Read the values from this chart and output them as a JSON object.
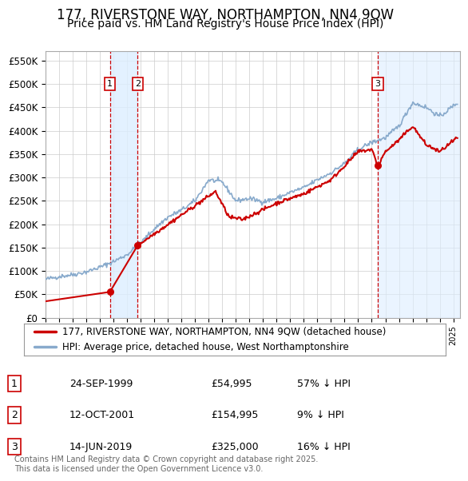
{
  "title": "177, RIVERSTONE WAY, NORTHAMPTON, NN4 9QW",
  "subtitle": "Price paid vs. HM Land Registry's House Price Index (HPI)",
  "ylim": [
    0,
    570000
  ],
  "yticks": [
    0,
    50000,
    100000,
    150000,
    200000,
    250000,
    300000,
    350000,
    400000,
    450000,
    500000,
    550000
  ],
  "ytick_labels": [
    "£0",
    "£50K",
    "£100K",
    "£150K",
    "£200K",
    "£250K",
    "£300K",
    "£350K",
    "£400K",
    "£450K",
    "£500K",
    "£550K"
  ],
  "xlim_start": 1995.0,
  "xlim_end": 2025.5,
  "sales": [
    {
      "num": 1,
      "year": 1999.73,
      "price": 54995,
      "label": "24-SEP-1999",
      "pct": "57%",
      "dir": "↓"
    },
    {
      "num": 2,
      "year": 2001.78,
      "price": 154995,
      "label": "12-OCT-2001",
      "pct": "9%",
      "dir": "↓"
    },
    {
      "num": 3,
      "year": 2019.45,
      "price": 325000,
      "label": "14-JUN-2019",
      "pct": "16%",
      "dir": "↓"
    }
  ],
  "red_color": "#cc0000",
  "blue_color": "#88aacc",
  "bg_color": "#ffffff",
  "grid_color": "#cccccc",
  "shade_color": "#ddeeff",
  "legend_label_red": "177, RIVERSTONE WAY, NORTHAMPTON, NN4 9QW (detached house)",
  "legend_label_blue": "HPI: Average price, detached house, West Northamptonshire",
  "footer": "Contains HM Land Registry data © Crown copyright and database right 2025.\nThis data is licensed under the Open Government Licence v3.0.",
  "hpi_keypoints_x": [
    1995,
    1996,
    1997,
    1998,
    1999,
    2000,
    2001,
    2002,
    2003,
    2004,
    2005,
    2006,
    2007,
    2008,
    2009,
    2010,
    2011,
    2012,
    2013,
    2014,
    2015,
    2016,
    2017,
    2018,
    2019,
    2020,
    2021,
    2022,
    2023,
    2024,
    2025.3
  ],
  "hpi_keypoints_y": [
    82000,
    88000,
    92000,
    98000,
    108000,
    120000,
    135000,
    160000,
    190000,
    215000,
    230000,
    250000,
    295000,
    290000,
    250000,
    255000,
    248000,
    255000,
    268000,
    278000,
    295000,
    310000,
    330000,
    360000,
    375000,
    385000,
    410000,
    460000,
    450000,
    430000,
    460000
  ],
  "red_keypoints_x": [
    1995.0,
    1999.73,
    2001.78,
    2007.5,
    2008.5,
    2009.5,
    2012.0,
    2014.0,
    2016.0,
    2018.0,
    2019.0,
    2019.45,
    2020.0,
    2021.0,
    2022.0,
    2023.0,
    2024.0,
    2025.3
  ],
  "red_keypoints_y": [
    35000,
    54995,
    154995,
    270000,
    215000,
    210000,
    245000,
    265000,
    295000,
    355000,
    360000,
    325000,
    355000,
    380000,
    410000,
    370000,
    355000,
    385000
  ]
}
